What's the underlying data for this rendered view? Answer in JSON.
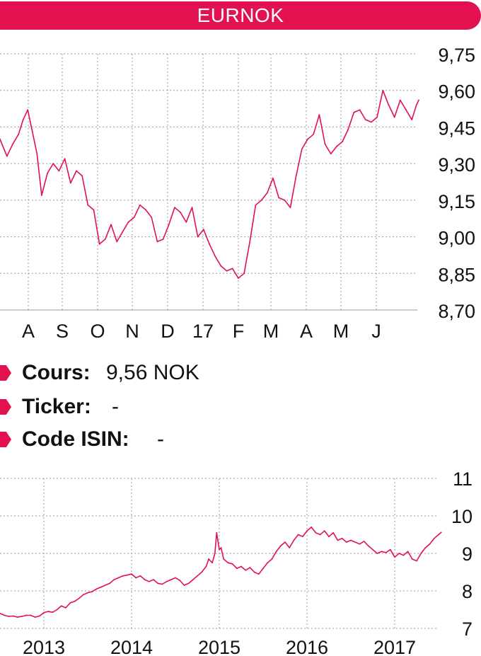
{
  "title": "EURNOK",
  "colors": {
    "accent": "#e2114f",
    "line": "#e2114f",
    "grid": "#9a9a9a",
    "text": "#111111"
  },
  "info": [
    {
      "label": "Cours:",
      "value": "9,56 NOK"
    },
    {
      "label": "Ticker:",
      "value": "-"
    },
    {
      "label": "Code ISIN:",
      "value": "-"
    }
  ],
  "chart_data": [
    {
      "type": "line",
      "title": "EURNOK",
      "x_tick_labels": [
        "A",
        "S",
        "O",
        "N",
        "D",
        "17",
        "F",
        "M",
        "A",
        "M",
        "J"
      ],
      "y_tick_labels": [
        "9,75",
        "9,60",
        "9,45",
        "9,30",
        "9,15",
        "9,00",
        "8,85",
        "8,70"
      ],
      "ylim": [
        8.7,
        9.75
      ],
      "grid": true,
      "series": [
        {
          "x": [
            "2016-07-15",
            "2016-07-21",
            "2016-07-26",
            "2016-07-31",
            "2016-08-04",
            "2016-08-08",
            "2016-08-12",
            "2016-08-16",
            "2016-08-20",
            "2016-08-25",
            "2016-08-30",
            "2016-09-04",
            "2016-09-09",
            "2016-09-14",
            "2016-09-19",
            "2016-09-24",
            "2016-09-29",
            "2016-10-04",
            "2016-10-09",
            "2016-10-14",
            "2016-10-19",
            "2016-10-24",
            "2016-10-29",
            "2016-11-03",
            "2016-11-08",
            "2016-11-13",
            "2016-11-18",
            "2016-11-23",
            "2016-11-28",
            "2016-12-03",
            "2016-12-08",
            "2016-12-13",
            "2016-12-18",
            "2016-12-23",
            "2016-12-28",
            "2017-01-02",
            "2017-01-07",
            "2017-01-12",
            "2017-01-17",
            "2017-01-22",
            "2017-01-27",
            "2017-02-01",
            "2017-02-06",
            "2017-02-11",
            "2017-02-16",
            "2017-02-21",
            "2017-02-26",
            "2017-03-03",
            "2017-03-08",
            "2017-03-13",
            "2017-03-18",
            "2017-03-23",
            "2017-03-28",
            "2017-04-02",
            "2017-04-07",
            "2017-04-12",
            "2017-04-17",
            "2017-04-22",
            "2017-04-27",
            "2017-05-02",
            "2017-05-07",
            "2017-05-12",
            "2017-05-17",
            "2017-05-22",
            "2017-05-27",
            "2017-06-01",
            "2017-06-06",
            "2017-06-11",
            "2017-06-16",
            "2017-06-21",
            "2017-06-26",
            "2017-07-01",
            "2017-07-06",
            "2017-07-10",
            "2017-07-12"
          ],
          "y": [
            9.4,
            9.33,
            9.38,
            9.42,
            9.48,
            9.52,
            9.43,
            9.34,
            9.17,
            9.26,
            9.3,
            9.27,
            9.32,
            9.22,
            9.27,
            9.25,
            9.13,
            9.11,
            8.97,
            8.99,
            9.05,
            8.98,
            9.02,
            9.06,
            9.08,
            9.13,
            9.11,
            9.08,
            8.98,
            8.99,
            9.05,
            9.12,
            9.1,
            9.06,
            9.12,
            9.0,
            9.03,
            8.97,
            8.92,
            8.88,
            8.86,
            8.87,
            8.83,
            8.85,
            8.98,
            9.13,
            9.15,
            9.18,
            9.24,
            9.16,
            9.15,
            9.12,
            9.25,
            9.36,
            9.4,
            9.42,
            9.5,
            9.38,
            9.34,
            9.37,
            9.39,
            9.44,
            9.51,
            9.52,
            9.48,
            9.47,
            9.49,
            9.6,
            9.54,
            9.49,
            9.56,
            9.52,
            9.48,
            9.54,
            9.56
          ]
        }
      ]
    },
    {
      "type": "line",
      "x_tick_labels": [
        "2013",
        "2014",
        "2015",
        "2016",
        "2017"
      ],
      "y_tick_labels": [
        "11",
        "10",
        "9",
        "8",
        "7"
      ],
      "ylim": [
        7,
        11
      ],
      "grid": true,
      "series": [
        {
          "x": [
            2012.5,
            2012.55,
            2012.6,
            2012.65,
            2012.7,
            2012.75,
            2012.8,
            2012.85,
            2012.9,
            2012.95,
            2013.0,
            2013.05,
            2013.1,
            2013.15,
            2013.2,
            2013.25,
            2013.3,
            2013.35,
            2013.4,
            2013.45,
            2013.5,
            2013.55,
            2013.6,
            2013.65,
            2013.7,
            2013.75,
            2013.8,
            2013.85,
            2013.9,
            2013.95,
            2014.0,
            2014.05,
            2014.1,
            2014.15,
            2014.2,
            2014.25,
            2014.3,
            2014.35,
            2014.4,
            2014.45,
            2014.5,
            2014.55,
            2014.6,
            2014.65,
            2014.7,
            2014.75,
            2014.8,
            2014.85,
            2014.88,
            2014.92,
            2014.95,
            2014.97,
            2015.0,
            2015.02,
            2015.05,
            2015.1,
            2015.15,
            2015.2,
            2015.25,
            2015.3,
            2015.35,
            2015.4,
            2015.45,
            2015.5,
            2015.55,
            2015.6,
            2015.65,
            2015.7,
            2015.75,
            2015.8,
            2015.85,
            2015.9,
            2015.95,
            2016.0,
            2016.05,
            2016.1,
            2016.15,
            2016.2,
            2016.25,
            2016.3,
            2016.35,
            2016.4,
            2016.45,
            2016.5,
            2016.55,
            2016.6,
            2016.65,
            2016.7,
            2016.75,
            2016.8,
            2016.85,
            2016.9,
            2016.95,
            2017.0,
            2017.05,
            2017.1,
            2017.15,
            2017.2,
            2017.25,
            2017.3,
            2017.35,
            2017.4,
            2017.45,
            2017.5,
            2017.53
          ],
          "y": [
            7.4,
            7.35,
            7.32,
            7.33,
            7.3,
            7.32,
            7.35,
            7.35,
            7.3,
            7.33,
            7.42,
            7.45,
            7.43,
            7.5,
            7.6,
            7.55,
            7.68,
            7.72,
            7.8,
            7.9,
            7.95,
            7.98,
            8.05,
            8.1,
            8.15,
            8.2,
            8.3,
            8.35,
            8.4,
            8.42,
            8.45,
            8.35,
            8.4,
            8.3,
            8.25,
            8.3,
            8.2,
            8.18,
            8.25,
            8.3,
            8.35,
            8.28,
            8.15,
            8.2,
            8.3,
            8.4,
            8.5,
            8.65,
            8.85,
            8.75,
            9.0,
            9.55,
            9.1,
            9.15,
            8.85,
            8.75,
            8.72,
            8.6,
            8.65,
            8.55,
            8.62,
            8.5,
            8.45,
            8.6,
            8.75,
            8.85,
            9.05,
            9.2,
            9.3,
            9.15,
            9.35,
            9.5,
            9.45,
            9.6,
            9.7,
            9.55,
            9.5,
            9.6,
            9.45,
            9.55,
            9.35,
            9.4,
            9.3,
            9.35,
            9.3,
            9.25,
            9.32,
            9.2,
            9.1,
            9.0,
            9.05,
            9.02,
            9.1,
            8.9,
            9.0,
            8.95,
            9.05,
            8.85,
            8.8,
            9.0,
            9.15,
            9.25,
            9.4,
            9.5,
            9.56
          ]
        }
      ]
    }
  ]
}
